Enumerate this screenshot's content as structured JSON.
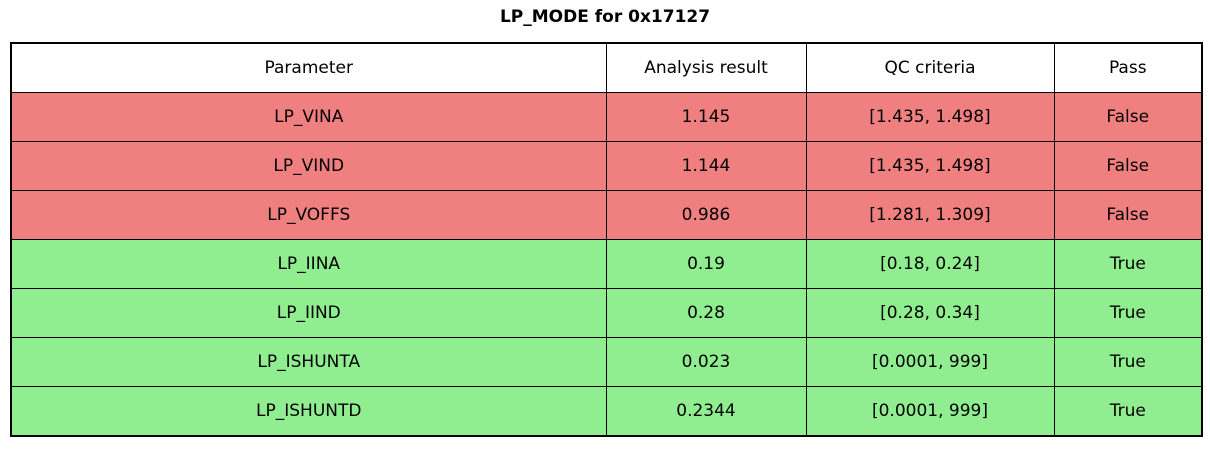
{
  "title": "LP_MODE for 0x17127",
  "colors": {
    "fail_row": "#f08080",
    "pass_row": "#90ee90",
    "header_bg": "#ffffff",
    "border": "#000000",
    "text": "#000000"
  },
  "table": {
    "columns": [
      "Parameter",
      "Analysis result",
      "QC criteria",
      "Pass"
    ],
    "rows": [
      {
        "parameter": "LP_VINA",
        "result": "1.145",
        "criteria": "[1.435, 1.498]",
        "pass": "False",
        "status": "fail"
      },
      {
        "parameter": "LP_VIND",
        "result": "1.144",
        "criteria": "[1.435, 1.498]",
        "pass": "False",
        "status": "fail"
      },
      {
        "parameter": "LP_VOFFS",
        "result": "0.986",
        "criteria": "[1.281, 1.309]",
        "pass": "False",
        "status": "fail"
      },
      {
        "parameter": "LP_IINA",
        "result": "0.19",
        "criteria": "[0.18, 0.24]",
        "pass": "True",
        "status": "pass"
      },
      {
        "parameter": "LP_IIND",
        "result": "0.28",
        "criteria": "[0.28, 0.34]",
        "pass": "True",
        "status": "pass"
      },
      {
        "parameter": "LP_ISHUNTA",
        "result": "0.023",
        "criteria": "[0.0001, 999]",
        "pass": "True",
        "status": "pass"
      },
      {
        "parameter": "LP_ISHUNTD",
        "result": "0.2344",
        "criteria": "[0.0001, 999]",
        "pass": "True",
        "status": "pass"
      }
    ]
  },
  "chart_data": {
    "type": "table",
    "title": "LP_MODE for 0x17127",
    "columns": [
      "Parameter",
      "Analysis result",
      "QC criteria",
      "Pass"
    ],
    "rows": [
      [
        "LP_VINA",
        1.145,
        "[1.435, 1.498]",
        false
      ],
      [
        "LP_VIND",
        1.144,
        "[1.435, 1.498]",
        false
      ],
      [
        "LP_VOFFS",
        0.986,
        "[1.281, 1.309]",
        false
      ],
      [
        "LP_IINA",
        0.19,
        "[0.18, 0.24]",
        true
      ],
      [
        "LP_IIND",
        0.28,
        "[0.28, 0.34]",
        true
      ],
      [
        "LP_ISHUNTA",
        0.023,
        "[0.0001, 999]",
        true
      ],
      [
        "LP_ISHUNTD",
        0.2344,
        "[0.0001, 999]",
        true
      ]
    ],
    "row_colors": [
      "#f08080",
      "#f08080",
      "#f08080",
      "#90ee90",
      "#90ee90",
      "#90ee90",
      "#90ee90"
    ]
  }
}
